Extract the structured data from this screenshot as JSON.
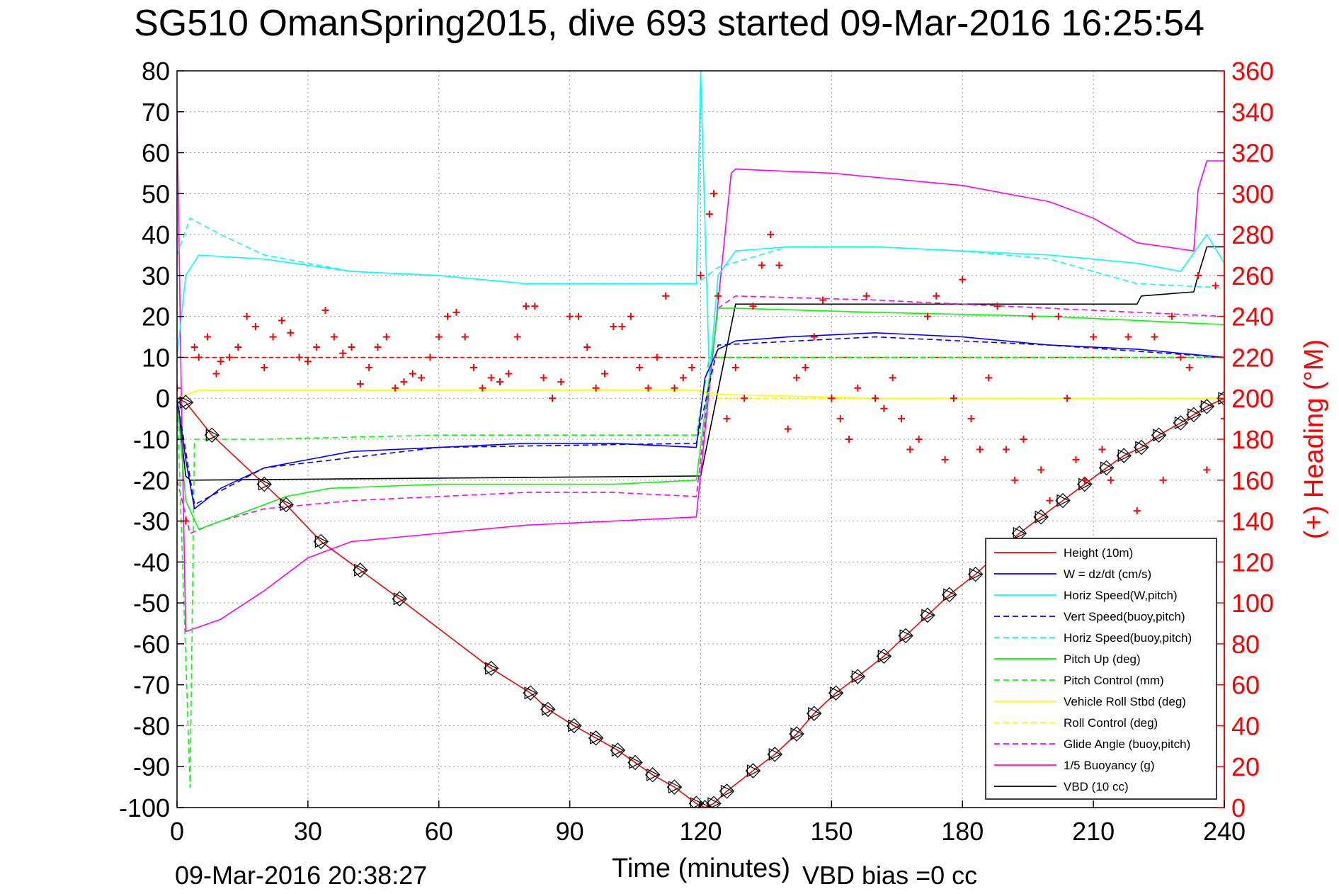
{
  "header": {
    "title": "SG510 OmanSpring2015, dive 693 started 09-Mar-2016 16:25:54"
  },
  "footer": {
    "timestamp": "09-Mar-2016 20:38:27",
    "vbd_bias": "VBD bias =0 cc"
  },
  "colors": {
    "height": "#ff0000",
    "w": "#0000ff",
    "horiz_speed": "#00ffff",
    "pitch": "#00ff00",
    "roll": "#ffff00",
    "glide": "#ff00ff",
    "buoyancy": "#ff00ff",
    "vbd": "#000000",
    "heading": "#ff0000"
  },
  "chart_data": {
    "type": "line",
    "title": "SG510 OmanSpring2015, dive 693 started 09-Mar-2016 16:25:54",
    "xlabel": "Time (minutes)",
    "ylabel_left": "",
    "ylabel_right": "(+) Heading (°M)",
    "xlim": [
      0,
      240
    ],
    "ylim_left": [
      -100,
      80
    ],
    "ylim_right": [
      0,
      360
    ],
    "x_ticks": [
      "0",
      "30",
      "60",
      "90",
      "120",
      "150",
      "180",
      "210",
      "240"
    ],
    "y_ticks_left": [
      "80",
      "70",
      "60",
      "50",
      "40",
      "30",
      "20",
      "10",
      "0",
      "-10",
      "-20",
      "-30",
      "-40",
      "-50",
      "-60",
      "-70",
      "-80",
      "-90",
      "-100"
    ],
    "y_ticks_right": [
      "360",
      "340",
      "320",
      "300",
      "280",
      "260",
      "240",
      "220",
      "200",
      "180",
      "160",
      "140",
      "120",
      "100",
      "80",
      "60",
      "40",
      "20",
      "0"
    ],
    "grid": true,
    "legend_position": "bottom-right",
    "series": [
      {
        "name": "Height (10m)",
        "color": "#ff0000",
        "dash": "solid",
        "x": [
          0,
          2,
          8,
          20,
          25,
          33,
          42,
          51,
          72,
          81,
          85,
          91,
          96,
          101,
          105,
          109,
          114,
          119,
          121,
          123,
          126,
          132,
          137,
          142,
          146,
          151,
          156,
          162,
          167,
          172,
          177,
          183,
          188,
          193,
          198,
          203,
          208,
          213,
          217,
          221,
          225,
          230,
          233,
          236,
          240
        ],
        "y": [
          0,
          -1,
          -9,
          -21,
          -26,
          -35,
          -42,
          -49,
          -66,
          -72,
          -76,
          -80,
          -83,
          -86,
          -89,
          -92,
          -95,
          -99,
          -100,
          -99,
          -96,
          -91,
          -87,
          -82,
          -77,
          -72,
          -68,
          -63,
          -58,
          -53,
          -48,
          -43,
          -38,
          -33,
          -29,
          -25,
          -21,
          -17,
          -14,
          -12,
          -9,
          -6,
          -4,
          -2,
          0
        ]
      },
      {
        "name": "W = dz/dt (cm/s)",
        "color": "#0000ff",
        "dash": "solid",
        "x": [
          0,
          2,
          4,
          10,
          20,
          30,
          40,
          60,
          80,
          100,
          119,
          121,
          124,
          128,
          140,
          160,
          180,
          200,
          220,
          240
        ],
        "y": [
          0,
          -15,
          -27,
          -22,
          -17,
          -15,
          -13,
          -12,
          -11,
          -11,
          -12,
          5,
          12,
          14,
          15,
          16,
          15,
          13,
          12,
          10
        ]
      },
      {
        "name": "Horiz Speed(W,pitch)",
        "color": "#00ffff",
        "dash": "solid",
        "x": [
          0,
          2,
          5,
          20,
          40,
          60,
          80,
          100,
          119,
          120,
          122,
          124,
          128,
          140,
          160,
          180,
          200,
          220,
          230,
          236,
          240
        ],
        "y": [
          10,
          30,
          35,
          34,
          31,
          30,
          28,
          28,
          28,
          80,
          5,
          30,
          36,
          37,
          37,
          36,
          35,
          33,
          31,
          40,
          33
        ]
      },
      {
        "name": "Vert Speed(buoy,pitch)",
        "color": "#0000ff",
        "dash": "dashed",
        "x": [
          0,
          4,
          20,
          60,
          119,
          124,
          160,
          200,
          240
        ],
        "y": [
          0,
          -26,
          -17,
          -12,
          -11,
          13,
          15,
          13,
          10
        ]
      },
      {
        "name": "Horiz Speed(buoy,pitch)",
        "color": "#00ffff",
        "dash": "dashed",
        "x": [
          0,
          3,
          10,
          20,
          40,
          60,
          80,
          100,
          119,
          124,
          140,
          160,
          180,
          200,
          220,
          240
        ],
        "y": [
          35,
          44,
          40,
          35,
          31,
          30,
          28,
          28,
          28,
          32,
          37,
          37,
          36,
          34,
          28,
          27
        ]
      },
      {
        "name": "Pitch Up (deg)",
        "color": "#00ff00",
        "dash": "solid",
        "x": [
          0,
          2,
          5,
          15,
          25,
          35,
          60,
          80,
          100,
          119,
          124,
          128,
          160,
          200,
          240
        ],
        "y": [
          0,
          -25,
          -32,
          -28,
          -24,
          -22,
          -21,
          -21,
          -21,
          -20,
          22,
          22,
          21,
          20,
          18
        ]
      },
      {
        "name": "Pitch Control (mm)",
        "color": "#00ff00",
        "dash": "dashed",
        "x": [
          0,
          3,
          4,
          20,
          60,
          100,
          119,
          122,
          124,
          160,
          200,
          240
        ],
        "y": [
          0,
          -95,
          -10,
          -10,
          -9,
          -9,
          -9,
          10,
          10,
          10,
          10,
          10
        ]
      },
      {
        "name": "Vehicle Roll Stbd (deg)",
        "color": "#ffff00",
        "dash": "solid",
        "x": [
          0,
          5,
          60,
          119,
          124,
          160,
          240
        ],
        "y": [
          0,
          2,
          2,
          2,
          1,
          0,
          0
        ]
      },
      {
        "name": "Roll Control (deg)",
        "color": "#ffff00",
        "dash": "dashed",
        "x": [
          0,
          5,
          60,
          119,
          124,
          160,
          240
        ],
        "y": [
          0,
          2,
          2,
          2,
          0,
          0,
          0
        ]
      },
      {
        "name": "Glide Angle (buoy,pitch)",
        "color": "#ff00ff",
        "dash": "dashed",
        "x": [
          0,
          3,
          10,
          20,
          40,
          60,
          80,
          100,
          119,
          124,
          128,
          160,
          200,
          240
        ],
        "y": [
          -20,
          -33,
          -30,
          -27,
          -25,
          -24,
          -23,
          -23,
          -24,
          22,
          25,
          24,
          22,
          20
        ]
      },
      {
        "name": "1/5 Buoyancy (g)",
        "color": "#ff00ff",
        "dash": "solid",
        "x": [
          0,
          1,
          2,
          10,
          20,
          30,
          40,
          60,
          80,
          100,
          119,
          127,
          128,
          150,
          180,
          200,
          210,
          220,
          233,
          234,
          236,
          240
        ],
        "y": [
          70,
          0,
          -57,
          -54,
          -47,
          -39,
          -35,
          -33,
          -31,
          -30,
          -29,
          55,
          56,
          55,
          52,
          48,
          44,
          38,
          36,
          51,
          58,
          58
        ]
      },
      {
        "name": "VBD (10 cc)",
        "color": "#000000",
        "dash": "solid",
        "x": [
          0,
          2,
          3,
          119,
          120,
          128,
          220,
          221,
          233,
          234,
          236,
          240
        ],
        "y": [
          0,
          -19,
          -20,
          -19,
          -19,
          23,
          23,
          25,
          26,
          30,
          37,
          37
        ]
      }
    ],
    "heading": {
      "name": "(+) Heading (°M)",
      "color": "#ff0000",
      "marker": "+",
      "target": 220,
      "x": [
        0,
        2,
        4,
        5,
        7,
        9,
        10,
        12,
        14,
        16,
        18,
        20,
        22,
        24,
        26,
        28,
        30,
        32,
        34,
        36,
        38,
        40,
        42,
        44,
        46,
        48,
        50,
        52,
        54,
        56,
        58,
        60,
        62,
        64,
        66,
        68,
        70,
        72,
        74,
        76,
        78,
        80,
        82,
        84,
        86,
        88,
        90,
        92,
        94,
        96,
        98,
        100,
        102,
        104,
        106,
        108,
        110,
        112,
        114,
        116,
        118,
        120,
        122,
        123,
        124,
        126,
        128,
        130,
        132,
        134,
        136,
        138,
        140,
        142,
        144,
        146,
        148,
        150,
        152,
        154,
        156,
        158,
        160,
        162,
        164,
        166,
        168,
        170,
        172,
        174,
        176,
        178,
        180,
        182,
        184,
        186,
        188,
        190,
        192,
        194,
        196,
        198,
        200,
        202,
        204,
        206,
        208,
        210,
        212,
        214,
        216,
        218,
        220,
        222,
        224,
        226,
        228,
        230,
        232,
        234,
        236,
        238,
        240
      ],
      "y": [
        205,
        140,
        225,
        220,
        230,
        212,
        218,
        220,
        225,
        240,
        235,
        215,
        230,
        238,
        232,
        220,
        218,
        225,
        243,
        230,
        222,
        225,
        207,
        215,
        225,
        230,
        205,
        208,
        212,
        210,
        220,
        230,
        240,
        242,
        230,
        215,
        205,
        210,
        208,
        212,
        230,
        245,
        245,
        210,
        200,
        208,
        240,
        240,
        225,
        205,
        212,
        235,
        235,
        240,
        215,
        205,
        220,
        250,
        205,
        210,
        215,
        260,
        290,
        300,
        250,
        190,
        215,
        200,
        245,
        265,
        280,
        265,
        185,
        210,
        215,
        230,
        248,
        200,
        190,
        180,
        205,
        250,
        200,
        195,
        210,
        190,
        175,
        180,
        240,
        250,
        170,
        200,
        258,
        190,
        175,
        210,
        245,
        175,
        160,
        180,
        240,
        165,
        150,
        240,
        200,
        170,
        160,
        230,
        175,
        160,
        130,
        230,
        145,
        125,
        230,
        160,
        240,
        220,
        215,
        260,
        165,
        255,
        190
      ]
    },
    "depth_markers": {
      "name": "depth markers",
      "x": [
        2,
        8,
        20,
        25,
        33,
        42,
        51,
        72,
        81,
        85,
        91,
        96,
        101,
        105,
        109,
        114,
        119,
        121,
        123,
        126,
        132,
        137,
        142,
        146,
        151,
        156,
        162,
        167,
        172,
        177,
        183,
        188,
        193,
        198,
        203,
        208,
        213,
        217,
        221,
        225,
        230,
        233,
        236,
        240
      ],
      "y": [
        -1,
        -9,
        -21,
        -26,
        -35,
        -42,
        -49,
        -66,
        -72,
        -76,
        -80,
        -83,
        -86,
        -89,
        -92,
        -95,
        -99,
        -100,
        -99,
        -96,
        -91,
        -87,
        -82,
        -77,
        -72,
        -68,
        -63,
        -58,
        -53,
        -48,
        -43,
        -38,
        -33,
        -29,
        -25,
        -21,
        -17,
        -14,
        -12,
        -9,
        -6,
        -4,
        -2,
        0
      ]
    }
  }
}
